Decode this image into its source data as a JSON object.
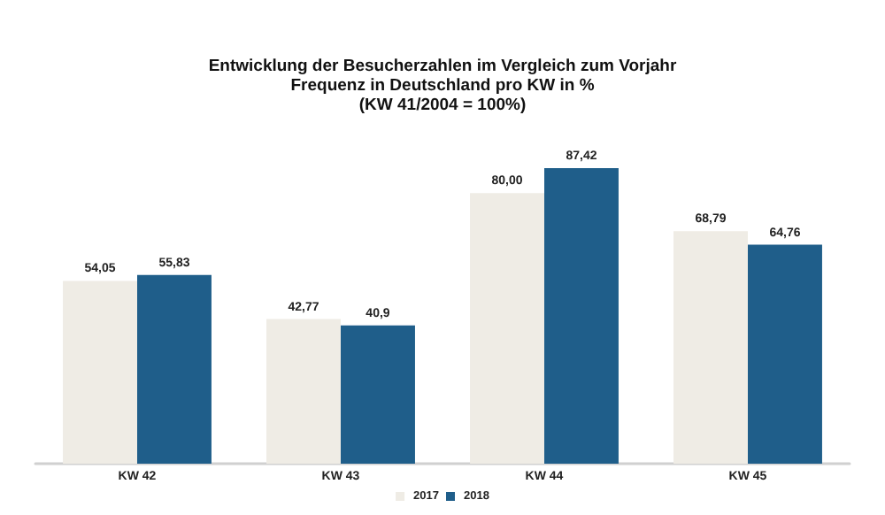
{
  "chart_data": {
    "type": "bar",
    "title": "Entwicklung der Besucherzahlen im Vergleich zum Vorjahr\nFrequenz in Deutschland pro KW in %\n(KW 41/2004 = 100%)",
    "categories": [
      "KW 42",
      "KW 43",
      "KW 44",
      "KW 45"
    ],
    "series": [
      {
        "name": "2017",
        "color": "#efece5",
        "values": [
          54.05,
          42.77,
          80.0,
          68.79
        ],
        "value_labels": [
          "54,05",
          "42,77",
          "80,00",
          "68,79"
        ]
      },
      {
        "name": "2018",
        "color": "#1f5e8a",
        "values": [
          55.83,
          40.9,
          87.42,
          64.76
        ],
        "value_labels": [
          "55,83",
          "40,9",
          "87,42",
          "64,76"
        ]
      }
    ],
    "legend": "bottom"
  }
}
